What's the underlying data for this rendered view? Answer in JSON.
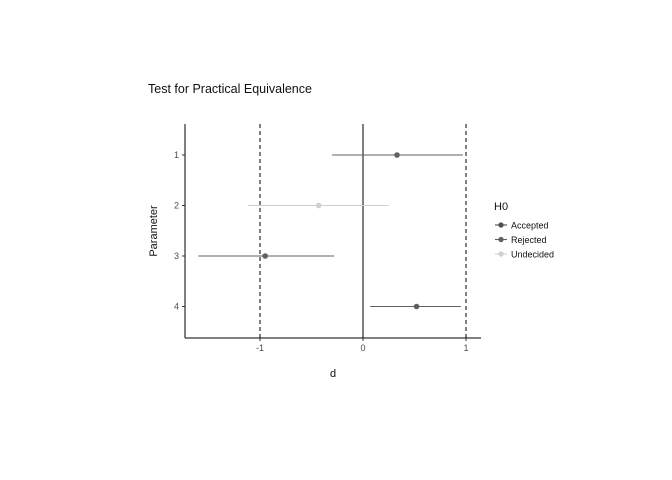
{
  "chart_data": {
    "type": "scatter",
    "title": "Test for Practical Equivalence",
    "xlabel": "d",
    "ylabel": "Parameter",
    "xlim": [
      -1.75,
      1.17
    ],
    "x_ticks": [
      -1,
      0,
      1
    ],
    "x_tick_labels": [
      "-1",
      "0",
      "1"
    ],
    "categories": [
      "1",
      "2",
      "3",
      "4"
    ],
    "reference_lines": {
      "zero": 0,
      "rope": [
        -1,
        1
      ]
    },
    "points": [
      {
        "parameter": "1",
        "estimate": 0.33,
        "low": -0.3,
        "high": 0.97,
        "H0": "Rejected"
      },
      {
        "parameter": "2",
        "estimate": -0.43,
        "low": -1.12,
        "high": 0.25,
        "H0": "Undecided"
      },
      {
        "parameter": "3",
        "estimate": -0.95,
        "low": -1.6,
        "high": -0.28,
        "H0": "Rejected"
      },
      {
        "parameter": "4",
        "estimate": 0.52,
        "low": 0.07,
        "high": 0.95,
        "H0": "Rejected"
      }
    ],
    "legend": {
      "title": "H0",
      "placement": "right",
      "entries": [
        "Accepted",
        "Rejected",
        "Undecided"
      ]
    },
    "colors": {
      "Accepted": "#4d4d4d",
      "Rejected": "#606060",
      "Undecided": "#d0d0d0"
    },
    "grid": false
  }
}
